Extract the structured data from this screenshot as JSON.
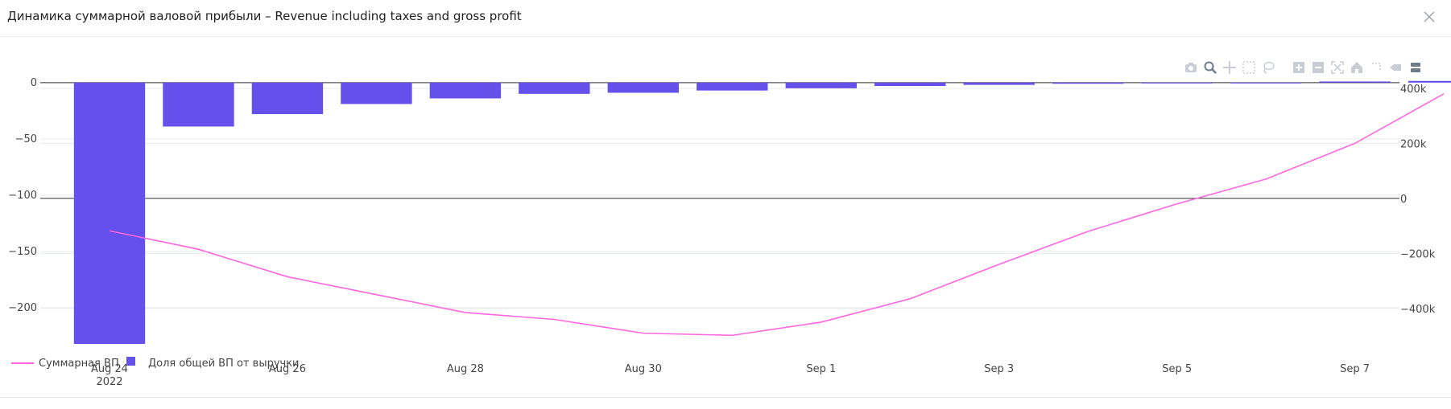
{
  "title": "Динамика суммарной валовой прибыли – Revenue including taxes and gross profit",
  "icons": {
    "close": "close-icon",
    "modebar": [
      "camera-icon",
      "zoom-icon",
      "pan-icon",
      "box-select-icon",
      "lasso-icon",
      "zoom-in-icon",
      "zoom-out-icon",
      "autoscale-icon",
      "reset-axes-icon",
      "spike-lines-icon",
      "hover-closest-icon",
      "hover-compare-icon"
    ]
  },
  "colors": {
    "bar": "#6550ec",
    "line": "#ff66e0",
    "zero_line": "#333333",
    "grid": "#e6e9ee"
  },
  "chart_data": {
    "type": "bar+line",
    "x_tick_labels": [
      "Aug 24\n2022",
      "Aug 26",
      "Aug 28",
      "Aug 30",
      "Sep 1",
      "Sep 3",
      "Sep 5",
      "Sep 7"
    ],
    "x_tick_dates": [
      "2022-08-24",
      "2022-08-26",
      "2022-08-28",
      "2022-08-30",
      "2022-09-01",
      "2022-09-03",
      "2022-09-05",
      "2022-09-07"
    ],
    "x_dates": [
      "2022-08-24",
      "2022-08-25",
      "2022-08-26",
      "2022-08-27",
      "2022-08-28",
      "2022-08-29",
      "2022-08-30",
      "2022-08-31",
      "2022-09-01",
      "2022-09-02",
      "2022-09-03",
      "2022-09-04",
      "2022-09-05",
      "2022-09-06",
      "2022-09-07",
      "2022-09-08"
    ],
    "y_left_range": [
      -242,
      12
    ],
    "y_left_ticks": [
      0,
      -50,
      -100,
      -150,
      -200
    ],
    "y_left_tick_labels": [
      "0",
      "−50",
      "−100",
      "−150",
      "−200"
    ],
    "y_right_range": [
      -570000,
      470000
    ],
    "y_right_ticks": [
      400000,
      200000,
      0,
      -200000,
      -400000
    ],
    "y_right_tick_labels": [
      "400k",
      "200k",
      "0",
      "−200k",
      "−400k"
    ],
    "series": [
      {
        "name": "Доля общей ВП от выручки",
        "type": "bar",
        "axis": "left",
        "values": [
          -232,
          -39,
          -28,
          -19,
          -14,
          -10,
          -9,
          -7,
          -5,
          -3,
          -2,
          -1,
          -0.5,
          -0.3,
          1,
          1.5
        ]
      },
      {
        "name": "Суммарная ВП",
        "type": "line",
        "axis": "right",
        "values": [
          -118000,
          -185000,
          -285000,
          -350000,
          -415000,
          -440000,
          -490000,
          -498000,
          -450000,
          -365000,
          -240000,
          -120000,
          -20000,
          70000,
          200000,
          380000
        ]
      }
    ],
    "legend": {
      "placement": "bottom-left",
      "items": [
        "Суммарная ВП",
        "Доля общей ВП от выручки"
      ]
    },
    "grid": true
  }
}
